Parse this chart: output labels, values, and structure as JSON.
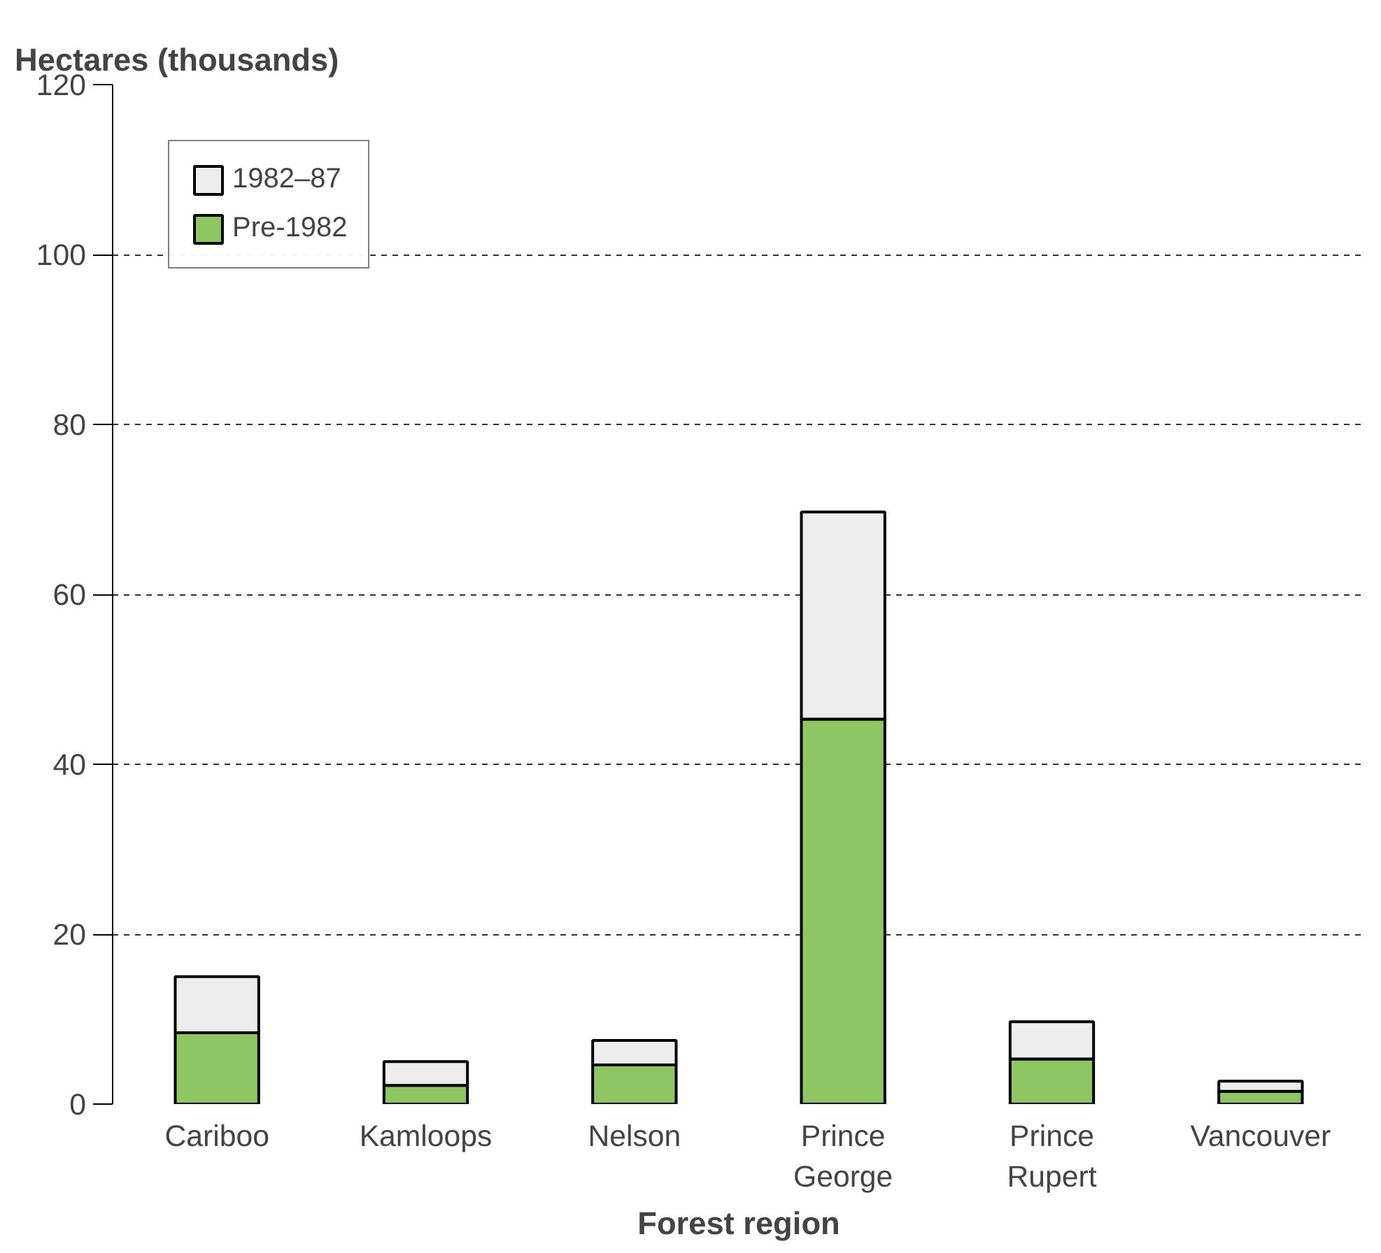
{
  "chart_data": {
    "type": "bar",
    "stacked": true,
    "ylabel": "Hectares (thousands)",
    "xlabel": "Forest region",
    "categories": [
      "Cariboo",
      "Kamloops",
      "Nelson",
      "Prince George",
      "Prince Rupert",
      "Vancouver"
    ],
    "series": [
      {
        "name": "Pre-1982",
        "color": "#8dc663",
        "values": [
          8.4,
          2.2,
          4.6,
          45.3,
          5.3,
          1.5
        ]
      },
      {
        "name": "1982–87",
        "color": "#ededed",
        "values": [
          6.6,
          2.8,
          2.9,
          24.4,
          4.4,
          1.2
        ]
      }
    ],
    "ylim": [
      0,
      120
    ],
    "yticks": [
      0,
      20,
      40,
      60,
      80,
      100,
      120
    ],
    "grid": "y",
    "legend": "top left"
  }
}
